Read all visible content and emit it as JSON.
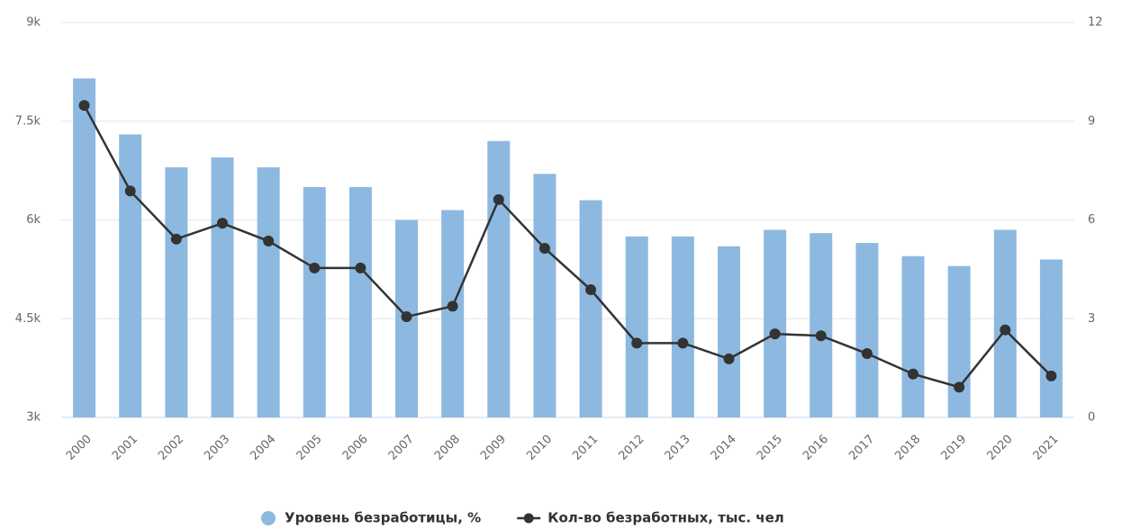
{
  "chart_data": {
    "type": "bar",
    "categories": [
      "2000",
      "2001",
      "2002",
      "2003",
      "2004",
      "2005",
      "2006",
      "2007",
      "2008",
      "2009",
      "2010",
      "2011",
      "2012",
      "2013",
      "2014",
      "2015",
      "2016",
      "2017",
      "2018",
      "2019",
      "2020",
      "2021"
    ],
    "series": [
      {
        "name": "Уровень безработицы, %",
        "type": "bar",
        "axis": "y2",
        "color": "#8db9e0",
        "values": [
          10.3,
          8.6,
          7.6,
          7.9,
          7.6,
          7.0,
          7.0,
          6.0,
          6.3,
          8.4,
          7.4,
          6.6,
          5.5,
          5.5,
          5.2,
          5.7,
          5.6,
          5.3,
          4.9,
          4.6,
          5.7,
          4.8
        ]
      },
      {
        "name": "Кол-во безработных, тыс. чел",
        "type": "line",
        "axis": "y",
        "color": "#333333",
        "values": [
          7740,
          6440,
          5710,
          5950,
          5680,
          5270,
          5270,
          4530,
          4690,
          6310,
          5570,
          4940,
          4130,
          4130,
          3890,
          4270,
          4240,
          3970,
          3660,
          3460,
          4330,
          3630
        ]
      }
    ],
    "ylim": [
      3000,
      9000
    ],
    "yticks": [
      {
        "value": 3000,
        "label": "3k"
      },
      {
        "value": 4500,
        "label": "4.5k"
      },
      {
        "value": 6000,
        "label": "6k"
      },
      {
        "value": 7500,
        "label": "7.5k"
      },
      {
        "value": 9000,
        "label": "9k"
      }
    ],
    "y2lim": [
      0,
      12
    ],
    "y2ticks": [
      0,
      3,
      6,
      9,
      12
    ],
    "grid": true
  }
}
